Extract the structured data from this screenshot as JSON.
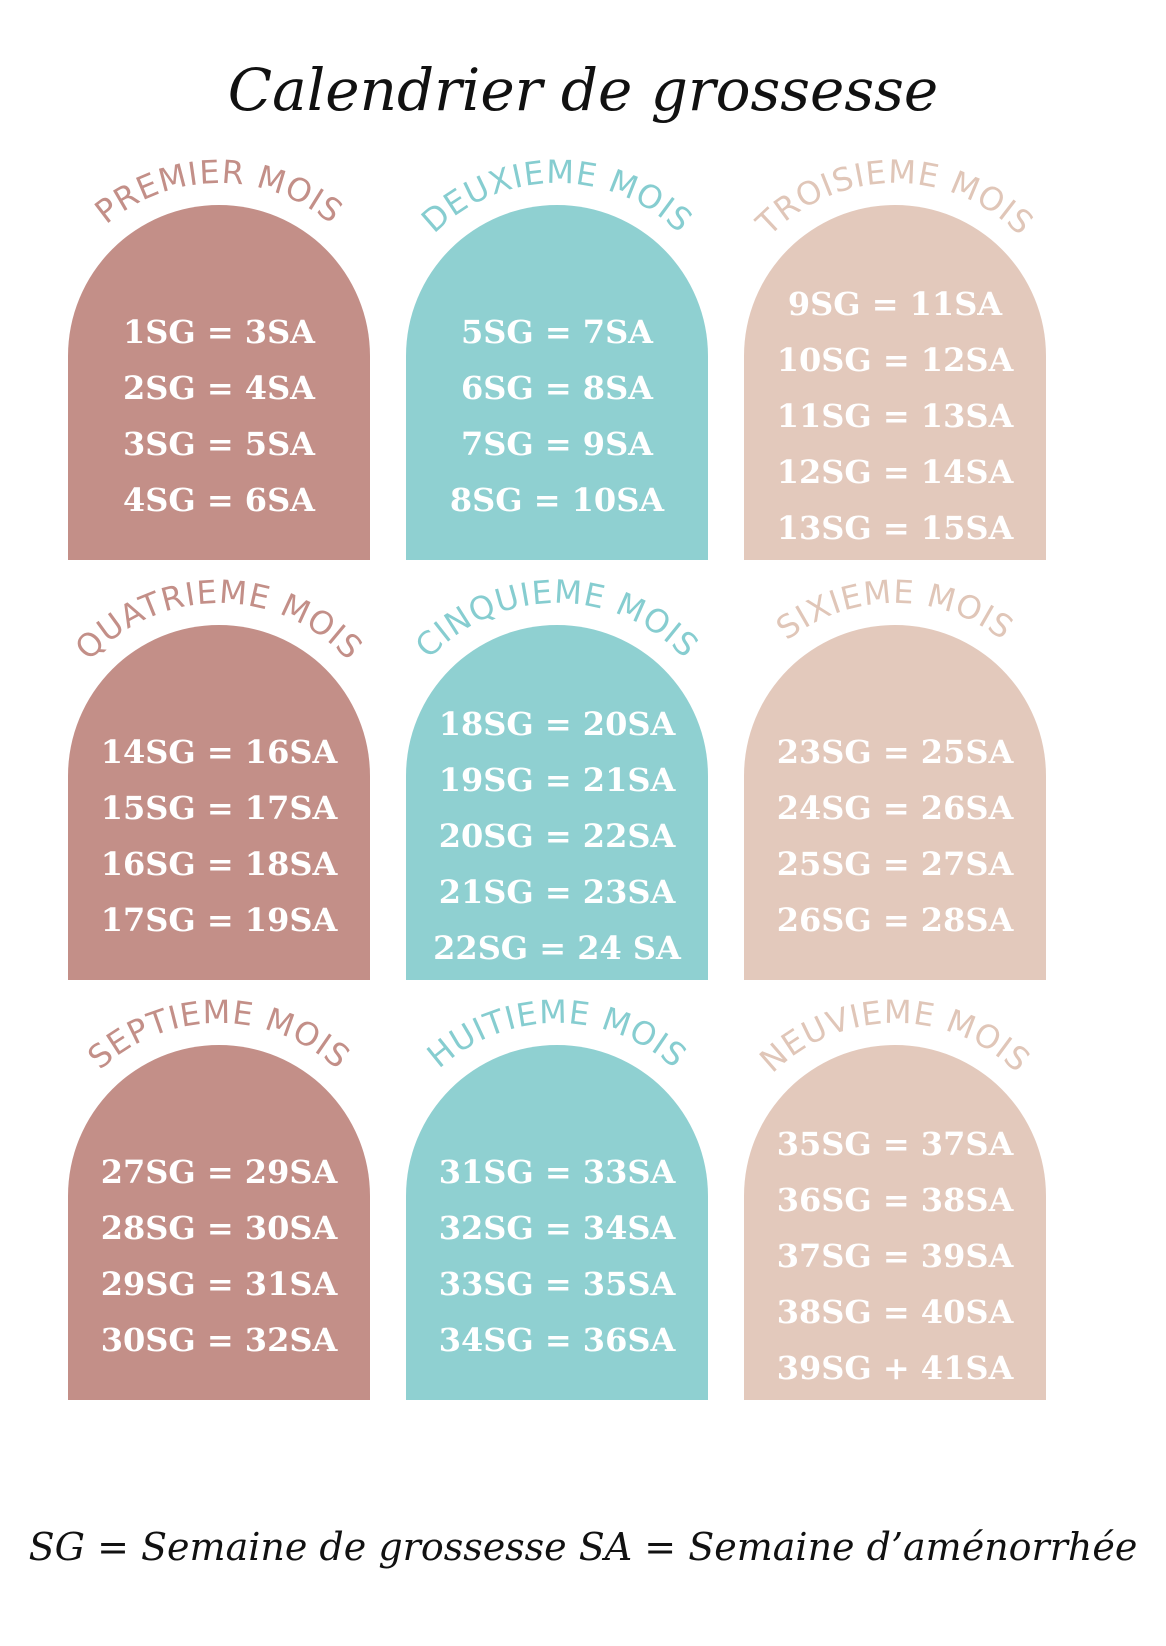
{
  "header": {
    "title": "Calendrier de grossesse"
  },
  "months": [
    {
      "label": "PREMIER MOIS",
      "lines": [
        "1SG = 3SA",
        "2SG = 4SA",
        "3SG = 5SA",
        "4SG = 6SA"
      ]
    },
    {
      "label": "DEUXIEME MOIS",
      "lines": [
        "5SG = 7SA",
        "6SG = 8SA",
        "7SG = 9SA",
        "8SG = 10SA"
      ]
    },
    {
      "label": "TROISIEME MOIS",
      "lines": [
        "9SG = 11SA",
        "10SG = 12SA",
        "11SG = 13SA",
        "12SG = 14SA",
        "13SG = 15SA"
      ]
    },
    {
      "label": "QUATRIEME MOIS",
      "lines": [
        "14SG = 16SA",
        "15SG = 17SA",
        "16SG = 18SA",
        "17SG = 19SA"
      ]
    },
    {
      "label": "CINQUIEME MOIS",
      "lines": [
        "18SG = 20SA",
        "19SG = 21SA",
        "20SG = 22SA",
        "21SG = 23SA",
        "22SG = 24 SA"
      ]
    },
    {
      "label": "SIXIEME MOIS",
      "lines": [
        "23SG = 25SA",
        "24SG = 26SA",
        "25SG = 27SA",
        "26SG = 28SA"
      ]
    },
    {
      "label": "SEPTIEME MOIS",
      "lines": [
        "27SG = 29SA",
        "28SG = 30SA",
        "29SG = 31SA",
        "30SG = 32SA"
      ]
    },
    {
      "label": "HUITIEME MOIS",
      "lines": [
        "31SG = 33SA",
        "32SG = 34SA",
        "33SG = 35SA",
        "34SG = 36SA"
      ]
    },
    {
      "label": "NEUVIEME MOIS",
      "lines": [
        "35SG = 37SA",
        "36SG = 38SA",
        "37SG = 39SA",
        "38SG = 40SA",
        "39SG + 41SA"
      ]
    }
  ],
  "footer": {
    "text": "SG = Semaine de grossesse  SA = Semaine d’aménorrhée"
  }
}
